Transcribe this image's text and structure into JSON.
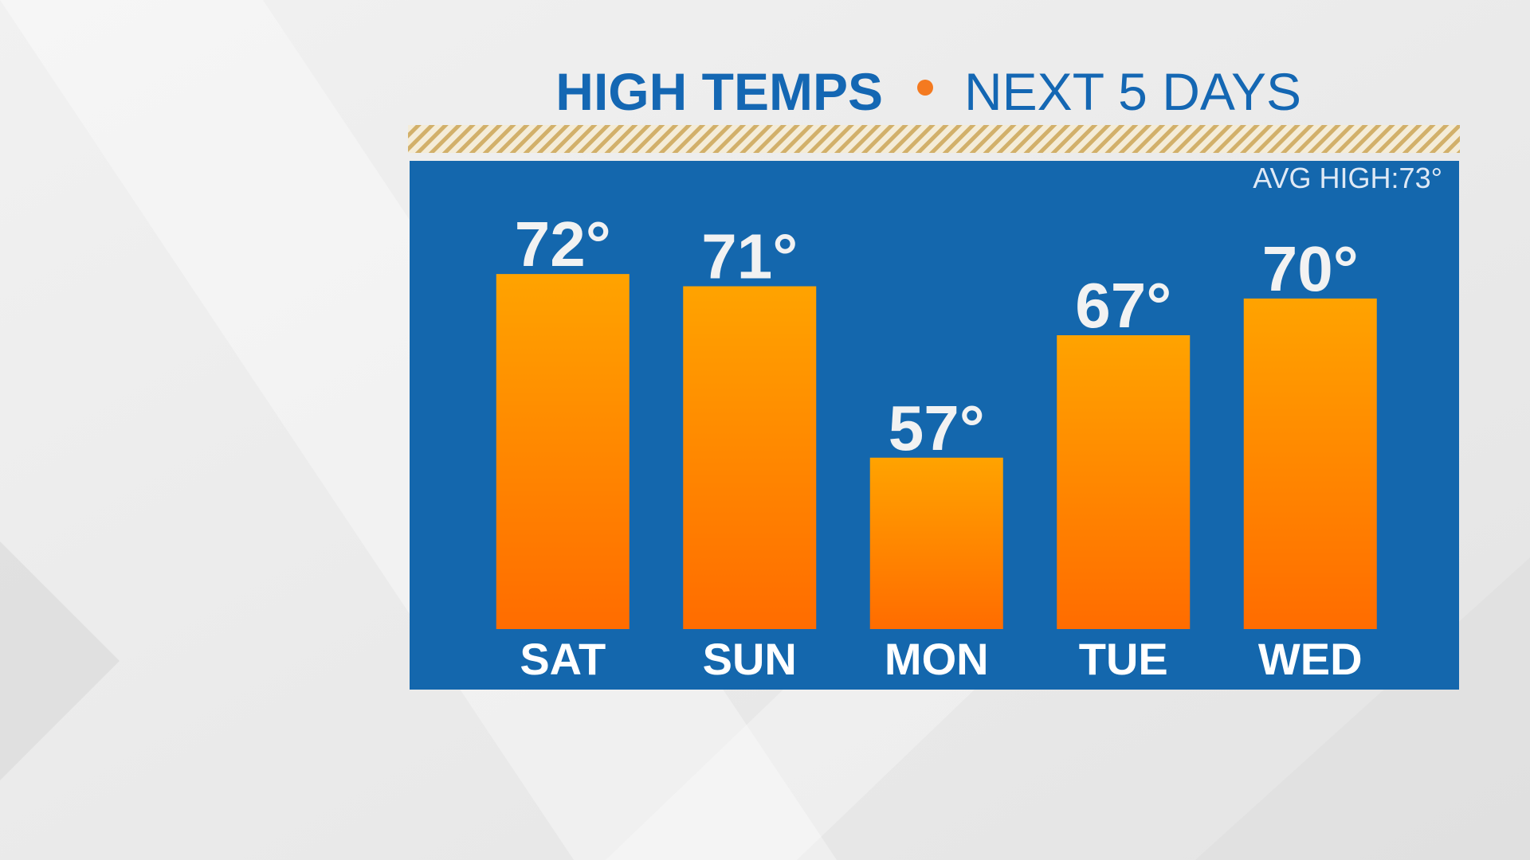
{
  "chart_data": {
    "type": "bar",
    "title": "HIGH TEMPS",
    "subtitle": "NEXT 5 DAYS",
    "annotation": "AVG HIGH:73°",
    "categories": [
      "SAT",
      "SUN",
      "MON",
      "TUE",
      "WED"
    ],
    "values": [
      72,
      71,
      57,
      67,
      70
    ],
    "value_labels": [
      "72°",
      "71°",
      "57°",
      "67°",
      "70°"
    ],
    "color": "#ff6c00",
    "ylim": [
      43,
      75
    ]
  }
}
